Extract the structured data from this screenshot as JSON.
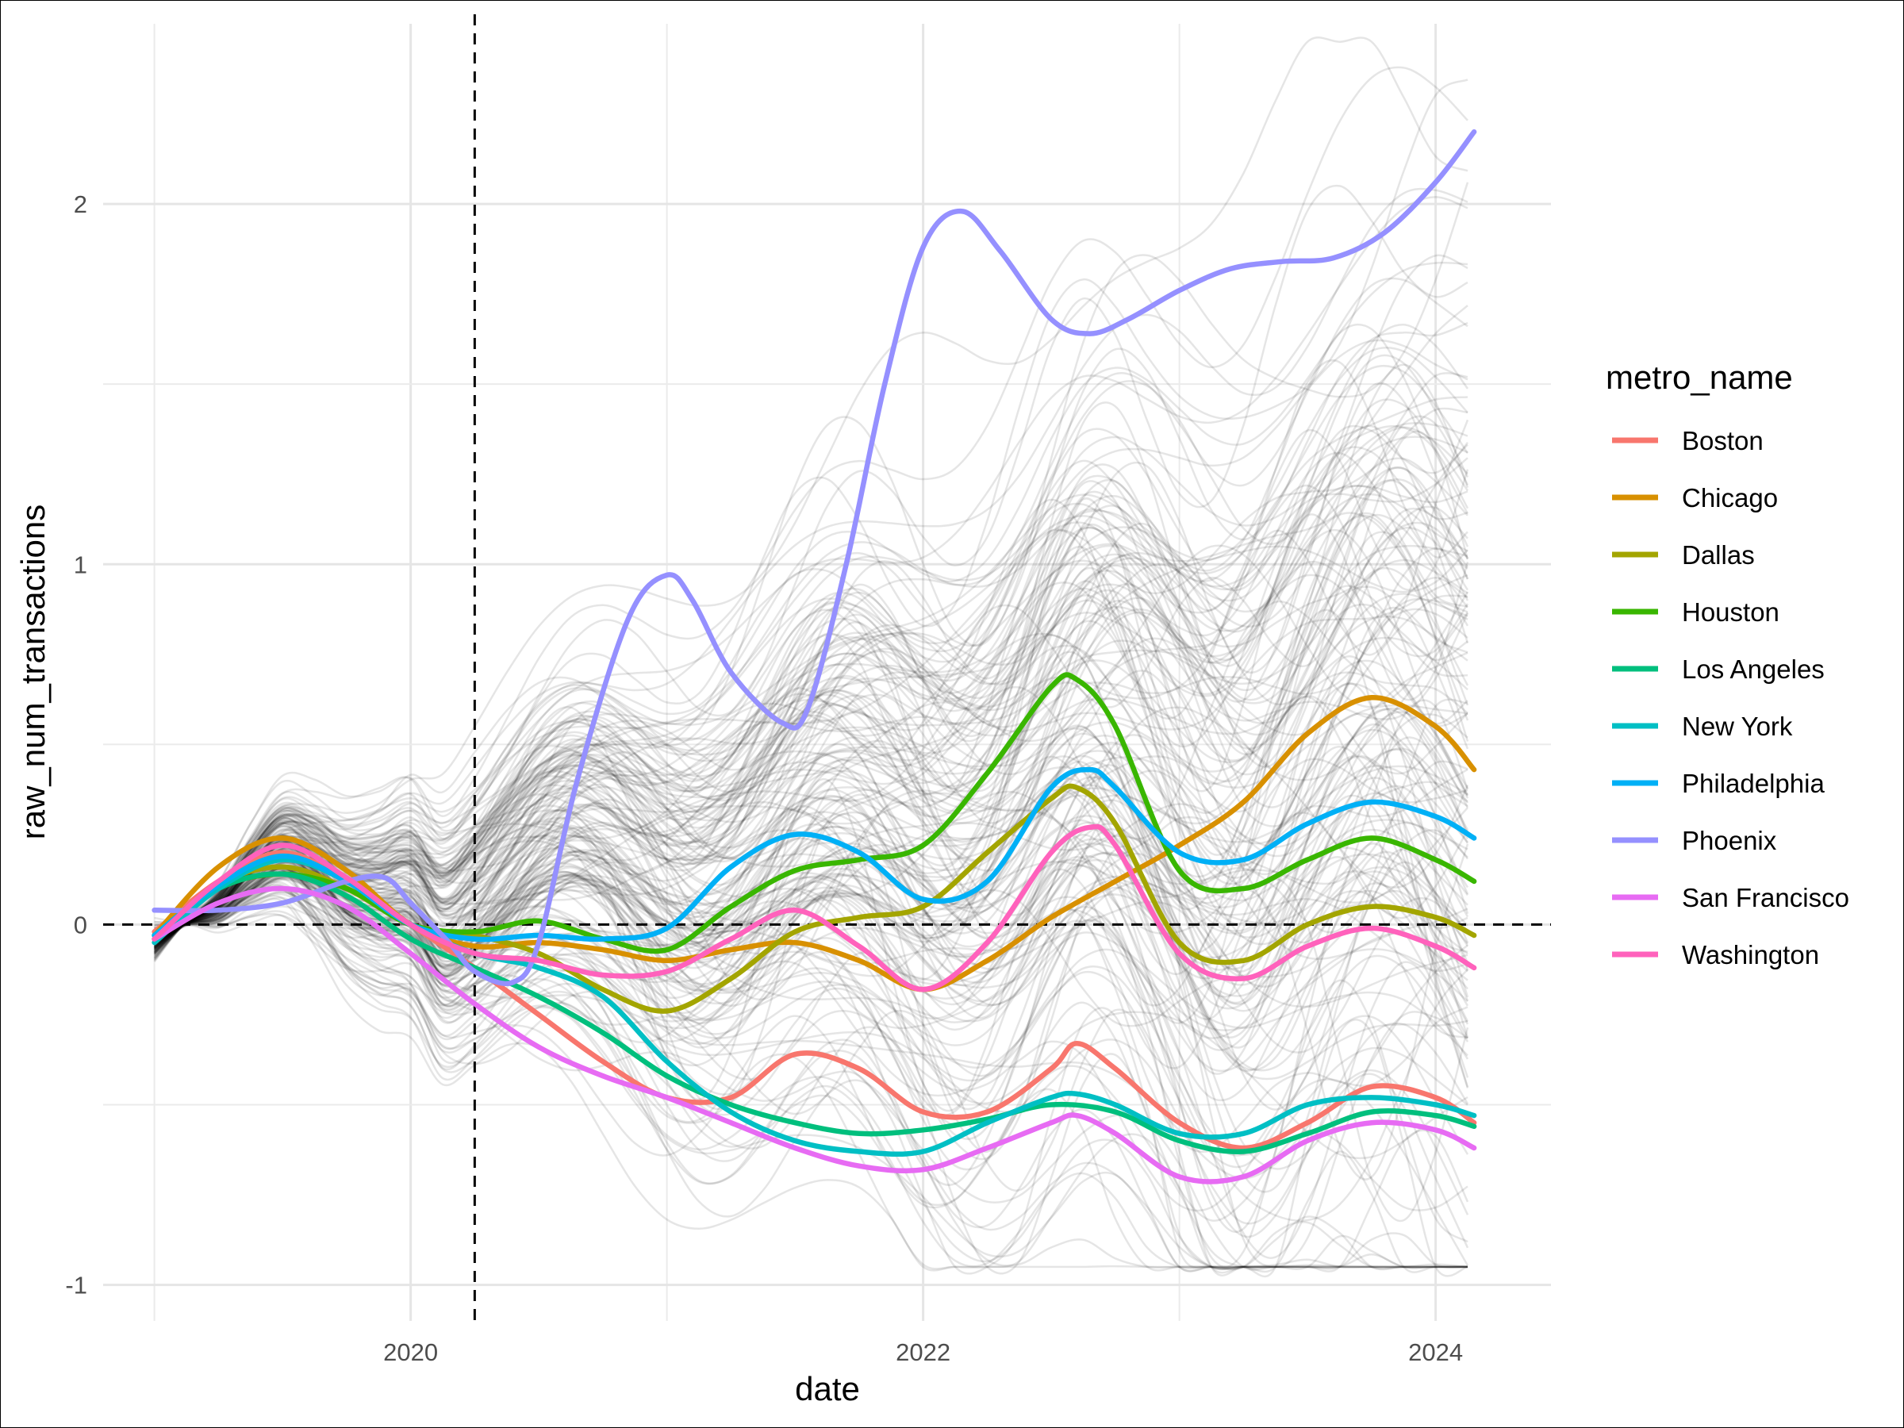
{
  "chart_data": {
    "type": "line",
    "xlabel": "date",
    "ylabel": "raw_num_transactions",
    "x_unit": "year",
    "xlim": [
      2018.8,
      2024.45
    ],
    "ylim": [
      -1.1,
      2.5
    ],
    "x_ticks": [
      2020,
      2022,
      2024
    ],
    "x_tick_labels": [
      "2020",
      "2022",
      "2024"
    ],
    "y_ticks": [
      -1,
      0,
      1,
      2
    ],
    "y_tick_labels": [
      "-1",
      "0",
      "1",
      "2"
    ],
    "grid": true,
    "reference_lines": {
      "horizontal_y": 0,
      "vertical_x": 2020.25,
      "style": "dashed"
    },
    "background_series": {
      "description_visible": false,
      "color": "#000000",
      "opacity": 0.1,
      "count": 180,
      "x_range": [
        2019.0,
        2024.15
      ],
      "y_range": [
        -0.95,
        2.45
      ]
    },
    "legend": {
      "title": "metro_name",
      "position": "right"
    },
    "series": [
      {
        "name": "Boston",
        "color": "#F8766D",
        "x": [
          2019.0,
          2019.25,
          2019.5,
          2019.75,
          2020.0,
          2020.25,
          2020.5,
          2020.75,
          2021.0,
          2021.25,
          2021.5,
          2021.75,
          2022.0,
          2022.25,
          2022.5,
          2022.6,
          2022.75,
          2023.0,
          2023.25,
          2023.5,
          2023.75,
          2024.0,
          2024.15
        ],
        "y": [
          -0.02,
          0.12,
          0.2,
          0.12,
          0.0,
          -0.12,
          -0.25,
          -0.38,
          -0.48,
          -0.48,
          -0.36,
          -0.4,
          -0.52,
          -0.52,
          -0.4,
          -0.33,
          -0.4,
          -0.55,
          -0.62,
          -0.55,
          -0.45,
          -0.48,
          -0.55
        ]
      },
      {
        "name": "Chicago",
        "color": "#D89000",
        "x": [
          2019.0,
          2019.25,
          2019.5,
          2019.75,
          2020.0,
          2020.25,
          2020.5,
          2020.75,
          2021.0,
          2021.25,
          2021.5,
          2021.75,
          2022.0,
          2022.25,
          2022.5,
          2022.75,
          2023.0,
          2023.25,
          2023.5,
          2023.75,
          2024.0,
          2024.15
        ],
        "y": [
          -0.03,
          0.16,
          0.24,
          0.15,
          0.0,
          -0.06,
          -0.05,
          -0.07,
          -0.1,
          -0.07,
          -0.05,
          -0.1,
          -0.18,
          -0.1,
          0.02,
          0.12,
          0.22,
          0.34,
          0.53,
          0.63,
          0.55,
          0.43
        ]
      },
      {
        "name": "Dallas",
        "color": "#A3A500",
        "x": [
          2019.0,
          2019.25,
          2019.5,
          2019.75,
          2020.0,
          2020.25,
          2020.5,
          2020.75,
          2021.0,
          2021.25,
          2021.5,
          2021.75,
          2022.0,
          2022.25,
          2022.5,
          2022.6,
          2022.75,
          2023.0,
          2023.25,
          2023.5,
          2023.75,
          2024.0,
          2024.15
        ],
        "y": [
          -0.04,
          0.11,
          0.16,
          0.1,
          0.0,
          -0.03,
          -0.08,
          -0.18,
          -0.24,
          -0.15,
          -0.02,
          0.02,
          0.05,
          0.2,
          0.35,
          0.38,
          0.28,
          -0.05,
          -0.1,
          0.0,
          0.05,
          0.02,
          -0.03
        ]
      },
      {
        "name": "Houston",
        "color": "#39B600",
        "x": [
          2019.0,
          2019.25,
          2019.5,
          2019.75,
          2020.0,
          2020.25,
          2020.5,
          2020.75,
          2021.0,
          2021.25,
          2021.5,
          2021.75,
          2022.0,
          2022.25,
          2022.5,
          2022.6,
          2022.75,
          2023.0,
          2023.25,
          2023.5,
          2023.75,
          2024.0,
          2024.15
        ],
        "y": [
          -0.04,
          0.1,
          0.14,
          0.1,
          0.0,
          -0.02,
          0.01,
          -0.04,
          -0.07,
          0.05,
          0.15,
          0.18,
          0.22,
          0.42,
          0.66,
          0.68,
          0.55,
          0.15,
          0.1,
          0.18,
          0.24,
          0.18,
          0.12
        ]
      },
      {
        "name": "Los Angeles",
        "color": "#00BF7D",
        "x": [
          2019.0,
          2019.25,
          2019.5,
          2019.75,
          2020.0,
          2020.25,
          2020.5,
          2020.75,
          2021.0,
          2021.25,
          2021.5,
          2021.75,
          2022.0,
          2022.25,
          2022.5,
          2022.75,
          2023.0,
          2023.25,
          2023.5,
          2023.75,
          2024.0,
          2024.15
        ],
        "y": [
          -0.03,
          0.1,
          0.14,
          0.08,
          -0.04,
          -0.12,
          -0.2,
          -0.3,
          -0.42,
          -0.5,
          -0.55,
          -0.58,
          -0.57,
          -0.54,
          -0.5,
          -0.52,
          -0.6,
          -0.63,
          -0.58,
          -0.52,
          -0.53,
          -0.56
        ]
      },
      {
        "name": "New York",
        "color": "#00BFC4",
        "x": [
          2019.0,
          2019.25,
          2019.5,
          2019.75,
          2020.0,
          2020.25,
          2020.5,
          2020.75,
          2021.0,
          2021.25,
          2021.5,
          2021.75,
          2022.0,
          2022.25,
          2022.5,
          2022.6,
          2022.75,
          2023.0,
          2023.25,
          2023.5,
          2023.75,
          2024.0,
          2024.15
        ],
        "y": [
          -0.05,
          0.1,
          0.18,
          0.12,
          0.0,
          -0.08,
          -0.12,
          -0.2,
          -0.38,
          -0.52,
          -0.6,
          -0.63,
          -0.63,
          -0.55,
          -0.48,
          -0.47,
          -0.5,
          -0.58,
          -0.58,
          -0.5,
          -0.48,
          -0.5,
          -0.53
        ]
      },
      {
        "name": "Philadelphia",
        "color": "#00B0F6",
        "x": [
          2019.0,
          2019.25,
          2019.5,
          2019.75,
          2020.0,
          2020.25,
          2020.5,
          2020.75,
          2021.0,
          2021.25,
          2021.5,
          2021.75,
          2022.0,
          2022.25,
          2022.5,
          2022.65,
          2022.75,
          2023.0,
          2023.25,
          2023.5,
          2023.75,
          2024.0,
          2024.15
        ],
        "y": [
          -0.03,
          0.11,
          0.19,
          0.12,
          0.0,
          -0.04,
          -0.03,
          -0.04,
          -0.01,
          0.16,
          0.25,
          0.2,
          0.07,
          0.12,
          0.38,
          0.43,
          0.38,
          0.2,
          0.18,
          0.28,
          0.34,
          0.3,
          0.24
        ]
      },
      {
        "name": "Phoenix",
        "color": "#9590FF",
        "x": [
          2019.0,
          2019.25,
          2019.5,
          2019.75,
          2019.9,
          2020.0,
          2020.15,
          2020.25,
          2020.4,
          2020.5,
          2020.65,
          2020.85,
          2021.0,
          2021.1,
          2021.25,
          2021.45,
          2021.55,
          2021.7,
          2021.85,
          2022.0,
          2022.15,
          2022.3,
          2022.5,
          2022.65,
          2022.8,
          2023.0,
          2023.2,
          2023.4,
          2023.6,
          2023.8,
          2024.0,
          2024.15
        ],
        "y": [
          0.04,
          0.04,
          0.06,
          0.12,
          0.13,
          0.06,
          -0.05,
          -0.13,
          -0.16,
          -0.05,
          0.4,
          0.85,
          0.97,
          0.9,
          0.7,
          0.56,
          0.6,
          1.0,
          1.5,
          1.88,
          1.98,
          1.87,
          1.68,
          1.64,
          1.68,
          1.76,
          1.82,
          1.84,
          1.85,
          1.92,
          2.06,
          2.2
        ]
      },
      {
        "name": "San Francisco",
        "color": "#E76BF3",
        "x": [
          2019.0,
          2019.25,
          2019.5,
          2019.75,
          2020.0,
          2020.25,
          2020.5,
          2020.75,
          2021.0,
          2021.25,
          2021.5,
          2021.75,
          2022.0,
          2022.25,
          2022.5,
          2022.6,
          2022.75,
          2023.0,
          2023.25,
          2023.5,
          2023.75,
          2024.0,
          2024.15
        ],
        "y": [
          -0.04,
          0.06,
          0.1,
          0.05,
          -0.08,
          -0.22,
          -0.34,
          -0.42,
          -0.48,
          -0.55,
          -0.62,
          -0.67,
          -0.68,
          -0.62,
          -0.55,
          -0.53,
          -0.58,
          -0.7,
          -0.7,
          -0.6,
          -0.55,
          -0.57,
          -0.62
        ]
      },
      {
        "name": "Washington",
        "color": "#FF62BC",
        "x": [
          2019.0,
          2019.25,
          2019.5,
          2019.75,
          2020.0,
          2020.25,
          2020.5,
          2020.75,
          2021.0,
          2021.25,
          2021.5,
          2021.75,
          2022.0,
          2022.25,
          2022.5,
          2022.65,
          2022.75,
          2023.0,
          2023.25,
          2023.5,
          2023.75,
          2024.0,
          2024.15
        ],
        "y": [
          -0.04,
          0.12,
          0.22,
          0.13,
          0.0,
          -0.08,
          -0.1,
          -0.14,
          -0.13,
          -0.04,
          0.04,
          -0.06,
          -0.18,
          -0.05,
          0.2,
          0.27,
          0.22,
          -0.08,
          -0.15,
          -0.06,
          -0.01,
          -0.06,
          -0.12
        ]
      }
    ]
  }
}
